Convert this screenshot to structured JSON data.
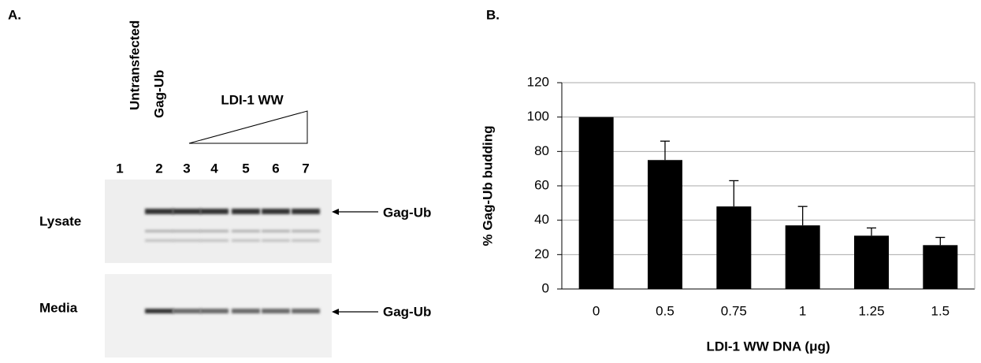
{
  "panel_a": {
    "label": "A.",
    "lane_headers": [
      "Untransfected",
      "Gag-Ub"
    ],
    "titration": "LDI-1 WW",
    "lanes": [
      "1",
      "2",
      "3",
      "4",
      "5",
      "6",
      "7"
    ],
    "rows": [
      "Lysate",
      "Media"
    ],
    "band_labels": [
      "Gag-Ub",
      "Gag-Ub"
    ]
  },
  "panel_b_label": "B.",
  "chart_data": {
    "type": "bar",
    "y_label": "% Gag-Ub budding",
    "x_label": "LDI-1 WW DNA (μg)",
    "categories": [
      "0",
      "0.5",
      "0.75",
      "1",
      "1.25",
      "1.5"
    ],
    "values": [
      100,
      75,
      48,
      37,
      31,
      25.5
    ],
    "errors": [
      null,
      11,
      15,
      11,
      4.5,
      4.5
    ],
    "color": "#000000",
    "ylim": [
      0,
      120
    ],
    "yticks": [
      0,
      20,
      40,
      60,
      80,
      100,
      120
    ],
    "grid": true
  }
}
